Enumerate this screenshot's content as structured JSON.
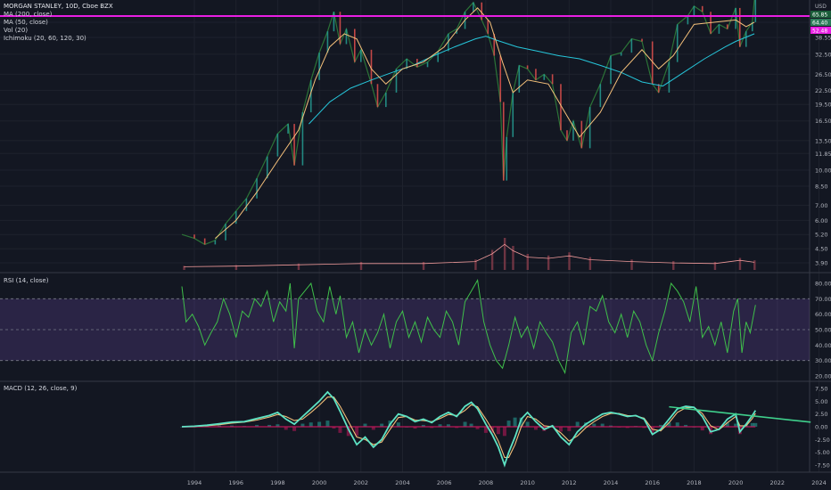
{
  "chart_data": {
    "type": "line",
    "title": "MORGAN STANLEY, 10D, Cboe BZX",
    "currency": "USD",
    "indicators": [
      "MA (200, close)",
      "MA (50, close)",
      "Vol (20)",
      "Ichimoku (20, 60, 120, 30)"
    ],
    "price_axis_labels": [
      "44.95",
      "38.55",
      "32.50",
      "26.50",
      "22.50",
      "19.50",
      "16.50",
      "13.50",
      "11.85",
      "10.00",
      "8.50",
      "7.00",
      "6.00",
      "5.20",
      "4.50",
      "3.90"
    ],
    "price_markers": [
      {
        "label": "65.85",
        "color": "#1b5e3a"
      },
      {
        "label": "64.40",
        "color": "#2e7d5b"
      },
      {
        "label": "52.48",
        "color": "#e91ee3"
      }
    ],
    "horizontal_line": {
      "value": 52.48,
      "color": "#e91ee3"
    },
    "x_axis_labels": [
      "1994",
      "1996",
      "1998",
      "2000",
      "2002",
      "2004",
      "2006",
      "2008",
      "2010",
      "2012",
      "2014",
      "2016",
      "2018",
      "2020",
      "2022",
      "2024"
    ],
    "price_series": {
      "years": [
        1993.4,
        1994.0,
        1994.5,
        1995.0,
        1995.5,
        1996.0,
        1996.5,
        1997.0,
        1997.5,
        1998.0,
        1998.5,
        1998.8,
        1999.2,
        1999.6,
        2000.0,
        2000.4,
        2000.7,
        2001.0,
        2001.3,
        2001.7,
        2002.0,
        2002.5,
        2002.8,
        2003.2,
        2003.7,
        2004.2,
        2004.7,
        2005.2,
        2005.7,
        2006.2,
        2006.6,
        2007.0,
        2007.4,
        2007.8,
        2008.1,
        2008.4,
        2008.7,
        2008.85,
        2009.0,
        2009.3,
        2009.6,
        2010.0,
        2010.4,
        2010.8,
        2011.2,
        2011.6,
        2011.9,
        2012.2,
        2012.6,
        2013.0,
        2013.5,
        2014.0,
        2014.5,
        2015.0,
        2015.5,
        2016.0,
        2016.3,
        2016.8,
        2017.2,
        2017.7,
        2018.0,
        2018.4,
        2018.8,
        2019.2,
        2019.6,
        2020.0,
        2020.2,
        2020.5,
        2020.8,
        2020.95
      ],
      "values": [
        5.2,
        5.0,
        4.7,
        4.9,
        5.8,
        6.6,
        7.5,
        9.2,
        11.5,
        14.5,
        16.0,
        10.5,
        18.0,
        25.0,
        33.0,
        41.0,
        50.0,
        36.0,
        42.0,
        30.0,
        34.0,
        24.0,
        19.0,
        22.0,
        28.0,
        31.0,
        28.5,
        30.0,
        33.5,
        40.0,
        42.0,
        50.0,
        55.0,
        46.0,
        40.0,
        32.0,
        20.0,
        9.0,
        14.0,
        22.0,
        29.0,
        28.0,
        25.0,
        26.5,
        24.0,
        15.0,
        13.5,
        16.5,
        12.5,
        19.0,
        24.0,
        32.0,
        33.0,
        38.0,
        37.0,
        24.0,
        22.0,
        30.0,
        44.0,
        48.0,
        53.0,
        50.0,
        40.0,
        44.0,
        42.0,
        52.0,
        35.0,
        41.0,
        45.0,
        64.0
      ]
    },
    "ma200_series": {
      "years": [
        1999.5,
        2000.5,
        2001.5,
        2002.5,
        2003.5,
        2004.5,
        2005.5,
        2006.5,
        2007.5,
        2008.0,
        2008.5,
        2009.5,
        2010.5,
        2011.5,
        2012.5,
        2013.5,
        2014.5,
        2015.5,
        2016.5,
        2017.5,
        2018.5,
        2019.5,
        2020.0,
        2020.9
      ],
      "values": [
        16.0,
        20.0,
        23.0,
        25.0,
        27.0,
        29.0,
        32.0,
        35.0,
        38.0,
        39.0,
        37.5,
        35.0,
        33.5,
        32.0,
        31.0,
        29.0,
        27.0,
        24.5,
        23.5,
        27.0,
        31.0,
        35.0,
        37.0,
        40.0
      ]
    },
    "ma50_series": {
      "years": [
        1995.0,
        1996.0,
        1997.0,
        1998.0,
        1999.0,
        1999.8,
        2000.5,
        2001.2,
        2001.8,
        2002.5,
        2003.2,
        2004.0,
        2005.0,
        2006.0,
        2007.0,
        2007.6,
        2008.2,
        2008.8,
        2009.3,
        2010.0,
        2011.0,
        2011.8,
        2012.5,
        2013.5,
        2014.5,
        2015.5,
        2016.3,
        2017.0,
        2018.0,
        2019.0,
        2020.0,
        2020.5,
        2020.9
      ],
      "values": [
        5.0,
        6.0,
        8.0,
        11.0,
        15.0,
        25.0,
        35.0,
        40.0,
        38.0,
        28.0,
        24.0,
        28.0,
        30.0,
        35.0,
        46.0,
        52.0,
        45.0,
        30.0,
        22.0,
        25.0,
        24.0,
        18.0,
        14.0,
        18.0,
        27.0,
        34.0,
        28.0,
        32.0,
        44.0,
        45.0,
        46.0,
        43.0,
        45.0
      ]
    },
    "volume_series": {
      "years": [
        1993.5,
        1996,
        1999,
        2002,
        2005,
        2007.5,
        2008.3,
        2008.9,
        2009.3,
        2010,
        2011,
        2012,
        2013,
        2015,
        2017,
        2019,
        2020.2,
        2020.9
      ],
      "values": [
        0.5,
        0.6,
        0.8,
        1.0,
        1.0,
        1.3,
        2.5,
        4.0,
        3.0,
        2.0,
        1.8,
        2.2,
        1.6,
        1.3,
        1.1,
        1.0,
        1.5,
        1.2
      ]
    },
    "rsi": {
      "label": "RSI (14, close)",
      "axis_labels": [
        "80.00",
        "70.00",
        "60.00",
        "50.00",
        "40.00",
        "30.00",
        "20.00"
      ],
      "band": [
        30,
        70
      ],
      "years": [
        1993.4,
        1993.6,
        1993.9,
        1994.2,
        1994.5,
        1994.8,
        1995.1,
        1995.4,
        1995.7,
        1996.0,
        1996.3,
        1996.6,
        1996.9,
        1997.2,
        1997.5,
        1997.8,
        1998.1,
        1998.4,
        1998.6,
        1998.8,
        1999.0,
        1999.3,
        1999.6,
        1999.9,
        2000.2,
        2000.5,
        2000.8,
        2001.0,
        2001.3,
        2001.6,
        2001.9,
        2002.2,
        2002.5,
        2002.8,
        2003.1,
        2003.4,
        2003.7,
        2004.0,
        2004.3,
        2004.6,
        2004.9,
        2005.2,
        2005.5,
        2005.8,
        2006.1,
        2006.4,
        2006.7,
        2007.0,
        2007.3,
        2007.6,
        2007.9,
        2008.2,
        2008.5,
        2008.8,
        2009.1,
        2009.4,
        2009.7,
        2010.0,
        2010.3,
        2010.6,
        2010.9,
        2011.2,
        2011.5,
        2011.8,
        2012.1,
        2012.4,
        2012.7,
        2013.0,
        2013.3,
        2013.6,
        2013.9,
        2014.2,
        2014.5,
        2014.8,
        2015.1,
        2015.4,
        2015.7,
        2016.0,
        2016.3,
        2016.6,
        2016.9,
        2017.2,
        2017.5,
        2017.8,
        2018.1,
        2018.4,
        2018.7,
        2019.0,
        2019.3,
        2019.6,
        2019.9,
        2020.1,
        2020.3,
        2020.5,
        2020.7,
        2020.95
      ],
      "values": [
        78,
        55,
        60,
        52,
        40,
        48,
        55,
        70,
        60,
        45,
        62,
        58,
        70,
        65,
        75,
        55,
        68,
        62,
        80,
        38,
        70,
        75,
        80,
        62,
        55,
        78,
        60,
        72,
        45,
        55,
        35,
        50,
        40,
        48,
        60,
        38,
        55,
        62,
        45,
        55,
        42,
        58,
        50,
        45,
        62,
        55,
        40,
        68,
        75,
        82,
        55,
        40,
        30,
        25,
        40,
        58,
        45,
        52,
        38,
        55,
        48,
        42,
        30,
        22,
        48,
        55,
        40,
        65,
        62,
        72,
        55,
        48,
        60,
        45,
        62,
        55,
        40,
        30,
        48,
        62,
        80,
        75,
        68,
        55,
        78,
        45,
        52,
        40,
        55,
        35,
        62,
        70,
        35,
        55,
        48,
        66
      ]
    },
    "macd": {
      "label": "MACD (12, 26, close, 9)",
      "axis_labels": [
        "7.50",
        "5.00",
        "2.50",
        "0.00",
        "-2.50",
        "-5.00",
        "-7.50"
      ],
      "years": [
        1993.4,
        1994.0,
        1994.6,
        1995.2,
        1995.8,
        1996.4,
        1997.0,
        1997.6,
        1998.0,
        1998.4,
        1998.8,
        1999.2,
        1999.6,
        2000.0,
        2000.4,
        2000.7,
        2001.0,
        2001.4,
        2001.8,
        2002.2,
        2002.6,
        2003.0,
        2003.4,
        2003.8,
        2004.2,
        2004.6,
        2005.0,
        2005.4,
        2005.8,
        2006.2,
        2006.6,
        2007.0,
        2007.3,
        2007.6,
        2008.0,
        2008.3,
        2008.6,
        2008.9,
        2009.1,
        2009.4,
        2009.7,
        2010.0,
        2010.4,
        2010.8,
        2011.2,
        2011.6,
        2012.0,
        2012.4,
        2012.8,
        2013.2,
        2013.6,
        2014.0,
        2014.4,
        2014.8,
        2015.2,
        2015.6,
        2016.0,
        2016.4,
        2016.8,
        2017.2,
        2017.6,
        2018.0,
        2018.4,
        2018.8,
        2019.2,
        2019.6,
        2020.0,
        2020.2,
        2020.5,
        2020.8,
        2020.95
      ],
      "macd_values": [
        0,
        0.1,
        0.3,
        0.6,
        0.9,
        1.0,
        1.6,
        2.2,
        2.8,
        1.5,
        0.5,
        2.0,
        3.5,
        5.0,
        6.8,
        5.5,
        3.0,
        -0.5,
        -3.5,
        -2.0,
        -4.0,
        -2.5,
        0.5,
        2.5,
        2.0,
        1.0,
        1.5,
        0.8,
        2.0,
        2.8,
        2.0,
        4.0,
        4.8,
        3.5,
        0.5,
        -1.5,
        -4.0,
        -7.5,
        -5.0,
        -2.0,
        1.5,
        2.8,
        1.0,
        -0.5,
        0.2,
        -2.0,
        -3.5,
        -1.0,
        0.5,
        1.5,
        2.5,
        2.8,
        2.5,
        2.0,
        2.2,
        1.5,
        -1.5,
        -0.5,
        1.5,
        3.5,
        4.0,
        3.8,
        2.0,
        -1.0,
        -0.5,
        1.5,
        2.5,
        -1.0,
        0.5,
        2.2,
        3.2
      ],
      "signal_values": [
        0,
        0.05,
        0.2,
        0.4,
        0.7,
        0.9,
        1.3,
        1.9,
        2.4,
        2.0,
        1.2,
        1.5,
        2.8,
        4.2,
        5.8,
        5.8,
        4.0,
        1.0,
        -2.0,
        -2.5,
        -3.5,
        -3.0,
        -0.5,
        1.8,
        2.0,
        1.3,
        1.2,
        1.0,
        1.6,
        2.4,
        2.2,
        3.2,
        4.3,
        3.9,
        1.5,
        -0.5,
        -2.8,
        -6.0,
        -6.0,
        -3.5,
        0.0,
        2.0,
        1.5,
        0.2,
        0.0,
        -1.2,
        -2.8,
        -1.8,
        -0.2,
        1.0,
        2.0,
        2.6,
        2.6,
        2.2,
        2.1,
        1.7,
        -0.5,
        -0.8,
        0.8,
        2.8,
        3.7,
        3.8,
        2.6,
        0.2,
        -0.6,
        0.8,
        2.0,
        0.2,
        0.2,
        1.6,
        2.6
      ],
      "trendline": {
        "x": [
          2016.8,
          2023.6
        ],
        "y": [
          3.9,
          0.9
        ],
        "color": "#3fd08c"
      }
    }
  }
}
